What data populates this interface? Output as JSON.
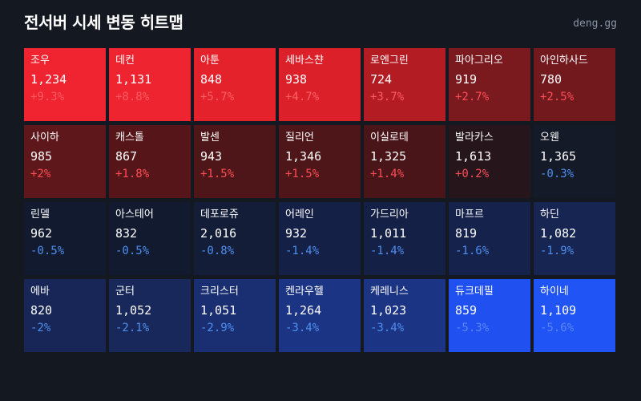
{
  "header": {
    "title": "전서버 시세 변동 히트맵",
    "brand": "deng.gg"
  },
  "cells": [
    {
      "name": "조우",
      "price": "1,234",
      "change": "+9.3%",
      "bg": "#f02430",
      "fg": "#ff5a62"
    },
    {
      "name": "데컨",
      "price": "1,131",
      "change": "+8.8%",
      "bg": "#ee2430",
      "fg": "#ff5a62"
    },
    {
      "name": "아툰",
      "price": "848",
      "change": "+5.7%",
      "bg": "#e4222c",
      "fg": "#ff5f66"
    },
    {
      "name": "세바스챤",
      "price": "938",
      "change": "+4.7%",
      "bg": "#dc202a",
      "fg": "#ff6068"
    },
    {
      "name": "로엔그린",
      "price": "724",
      "change": "+3.7%",
      "bg": "#b41c24",
      "fg": "#ff5a62"
    },
    {
      "name": "파아그리오",
      "price": "919",
      "change": "+2.7%",
      "bg": "#7a1a1f",
      "fg": "#ff4d56"
    },
    {
      "name": "아인하사드",
      "price": "780",
      "change": "+2.5%",
      "bg": "#72191e",
      "fg": "#ff4d56"
    },
    {
      "name": "사이하",
      "price": "985",
      "change": "+2%",
      "bg": "#5e171b",
      "fg": "#ff4d56"
    },
    {
      "name": "캐스톨",
      "price": "867",
      "change": "+1.8%",
      "bg": "#561619",
      "fg": "#ff4d56"
    },
    {
      "name": "발센",
      "price": "943",
      "change": "+1.5%",
      "bg": "#4e1618",
      "fg": "#ff4d56"
    },
    {
      "name": "질리언",
      "price": "1,346",
      "change": "+1.5%",
      "bg": "#4e1618",
      "fg": "#ff4d56"
    },
    {
      "name": "이실로테",
      "price": "1,325",
      "change": "+1.4%",
      "bg": "#4a1518",
      "fg": "#ff4d56"
    },
    {
      "name": "발라카스",
      "price": "1,613",
      "change": "+0.2%",
      "bg": "#26151b",
      "fg": "#ff4d56"
    },
    {
      "name": "오웬",
      "price": "1,365",
      "change": "-0.3%",
      "bg": "#151a29",
      "fg": "#4f8ff0"
    },
    {
      "name": "린델",
      "price": "962",
      "change": "-0.5%",
      "bg": "#121a30",
      "fg": "#4f8ff0"
    },
    {
      "name": "아스테어",
      "price": "832",
      "change": "-0.5%",
      "bg": "#121a30",
      "fg": "#4f8ff0"
    },
    {
      "name": "데포로쥬",
      "price": "2,016",
      "change": "-0.8%",
      "bg": "#131d38",
      "fg": "#4f8ff0"
    },
    {
      "name": "어레인",
      "price": "932",
      "change": "-1.4%",
      "bg": "#142046",
      "fg": "#4f8ff0"
    },
    {
      "name": "가드리아",
      "price": "1,011",
      "change": "-1.4%",
      "bg": "#142046",
      "fg": "#4f8ff0"
    },
    {
      "name": "마프르",
      "price": "819",
      "change": "-1.6%",
      "bg": "#15224c",
      "fg": "#4f8ff0"
    },
    {
      "name": "하딘",
      "price": "1,082",
      "change": "-1.9%",
      "bg": "#162552",
      "fg": "#4f8ff0"
    },
    {
      "name": "에바",
      "price": "820",
      "change": "-2%",
      "bg": "#172656",
      "fg": "#4f8ff0"
    },
    {
      "name": "군터",
      "price": "1,052",
      "change": "-2.1%",
      "bg": "#18285a",
      "fg": "#4f8ff0"
    },
    {
      "name": "크리스터",
      "price": "1,051",
      "change": "-2.9%",
      "bg": "#1a2f72",
      "fg": "#4f8ff0"
    },
    {
      "name": "켄라우헬",
      "price": "1,264",
      "change": "-3.4%",
      "bg": "#1c3484",
      "fg": "#4f8ff0"
    },
    {
      "name": "케레니스",
      "price": "1,023",
      "change": "-3.4%",
      "bg": "#1c3484",
      "fg": "#4f8ff0"
    },
    {
      "name": "듀크데필",
      "price": "859",
      "change": "-5.3%",
      "bg": "#2050f0",
      "fg": "#5a86f5"
    },
    {
      "name": "하이네",
      "price": "1,109",
      "change": "-5.6%",
      "bg": "#2054f4",
      "fg": "#5a86f5"
    }
  ]
}
